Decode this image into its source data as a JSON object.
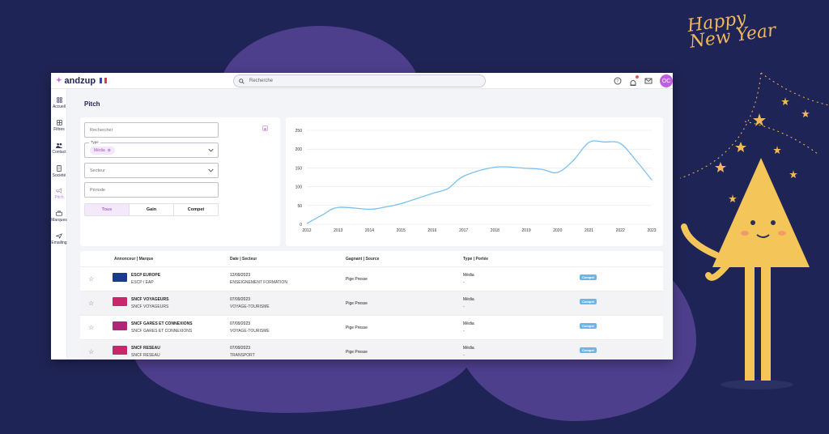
{
  "app": {
    "brand": "andzup",
    "search_placeholder": "Recherche",
    "avatar_initials": "OC",
    "page_title": "Pitch"
  },
  "sidebar": {
    "items": [
      {
        "label": "Accueil",
        "icon": "grid-icon",
        "active": false
      },
      {
        "label": "Filtres",
        "icon": "filter-grid-icon",
        "active": false
      },
      {
        "label": "Contact",
        "icon": "people-icon",
        "active": false
      },
      {
        "label": "Société",
        "icon": "building-icon",
        "active": false
      },
      {
        "label": "Pitch",
        "icon": "megaphone-icon",
        "active": true
      },
      {
        "label": "Marques",
        "icon": "briefcase-icon",
        "active": false
      },
      {
        "label": "Emailing",
        "icon": "send-icon",
        "active": false
      }
    ]
  },
  "filters": {
    "search_placeholder": "Rechercher",
    "type_label": "Type",
    "type_chip": "Média",
    "secteur_placeholder": "Secteur",
    "periode_placeholder": "Période",
    "segments": [
      "Tous",
      "Gain",
      "Compet"
    ],
    "active_segment": "Tous"
  },
  "chart_data": {
    "type": "line",
    "x": [
      2012,
      2012.5,
      2013,
      2014,
      2014.5,
      2015,
      2016,
      2016.5,
      2017,
      2018,
      2019,
      2019.5,
      2020,
      2020.5,
      2021,
      2021.5,
      2022,
      2022.5,
      2023
    ],
    "y": [
      2,
      25,
      45,
      40,
      46,
      55,
      82,
      95,
      128,
      152,
      149,
      146,
      138,
      170,
      218,
      219,
      215,
      170,
      118
    ],
    "xticks": [
      2012,
      2013,
      2014,
      2015,
      2016,
      2017,
      2018,
      2019,
      2020,
      2021,
      2022,
      2023
    ],
    "yticks": [
      0,
      50,
      100,
      150,
      200,
      250
    ],
    "ylim": [
      0,
      250
    ],
    "xlim": [
      2012,
      2023
    ],
    "color": "#7cc0ee",
    "grid": true
  },
  "table": {
    "headers": [
      "Annonceur | Marque",
      "Date | Secteur",
      "Gagnant | Source",
      "Type | Portée"
    ],
    "rows": [
      {
        "annonceur": "ESCP EUROPE",
        "marque": "ESCP / EAP",
        "date": "12/09/2023",
        "secteur": "ENSEIGNEMENT FORMATION",
        "source": "Pige Presse",
        "type": "Média",
        "portee": "-",
        "badge": "Compet",
        "logo_color": "#1a3a8a"
      },
      {
        "annonceur": "SNCF VOYAGEURS",
        "marque": "SNCF VOYAGEURS",
        "date": "07/09/2023",
        "secteur": "VOYAGE-TOURISME",
        "source": "Pige Presse",
        "type": "Média",
        "portee": "-",
        "badge": "Compet",
        "logo_color": "#c8286b"
      },
      {
        "annonceur": "SNCF GARES ET CONNEXIONS",
        "marque": "SNCF GARES ET CONNEXIONS",
        "date": "07/09/2023",
        "secteur": "VOYAGE-TOURISME",
        "source": "Pige Presse",
        "type": "Média",
        "portee": "-",
        "badge": "Compet",
        "logo_color": "#b0247a"
      },
      {
        "annonceur": "SNCF RESEAU",
        "marque": "SNCF RESEAU",
        "date": "07/09/2023",
        "secteur": "TRANSPORT",
        "source": "Pige Presse",
        "type": "Média",
        "portee": "-",
        "badge": "Compet",
        "logo_color": "#c8286b"
      }
    ]
  },
  "decor": {
    "greeting": "Happy New Year"
  }
}
